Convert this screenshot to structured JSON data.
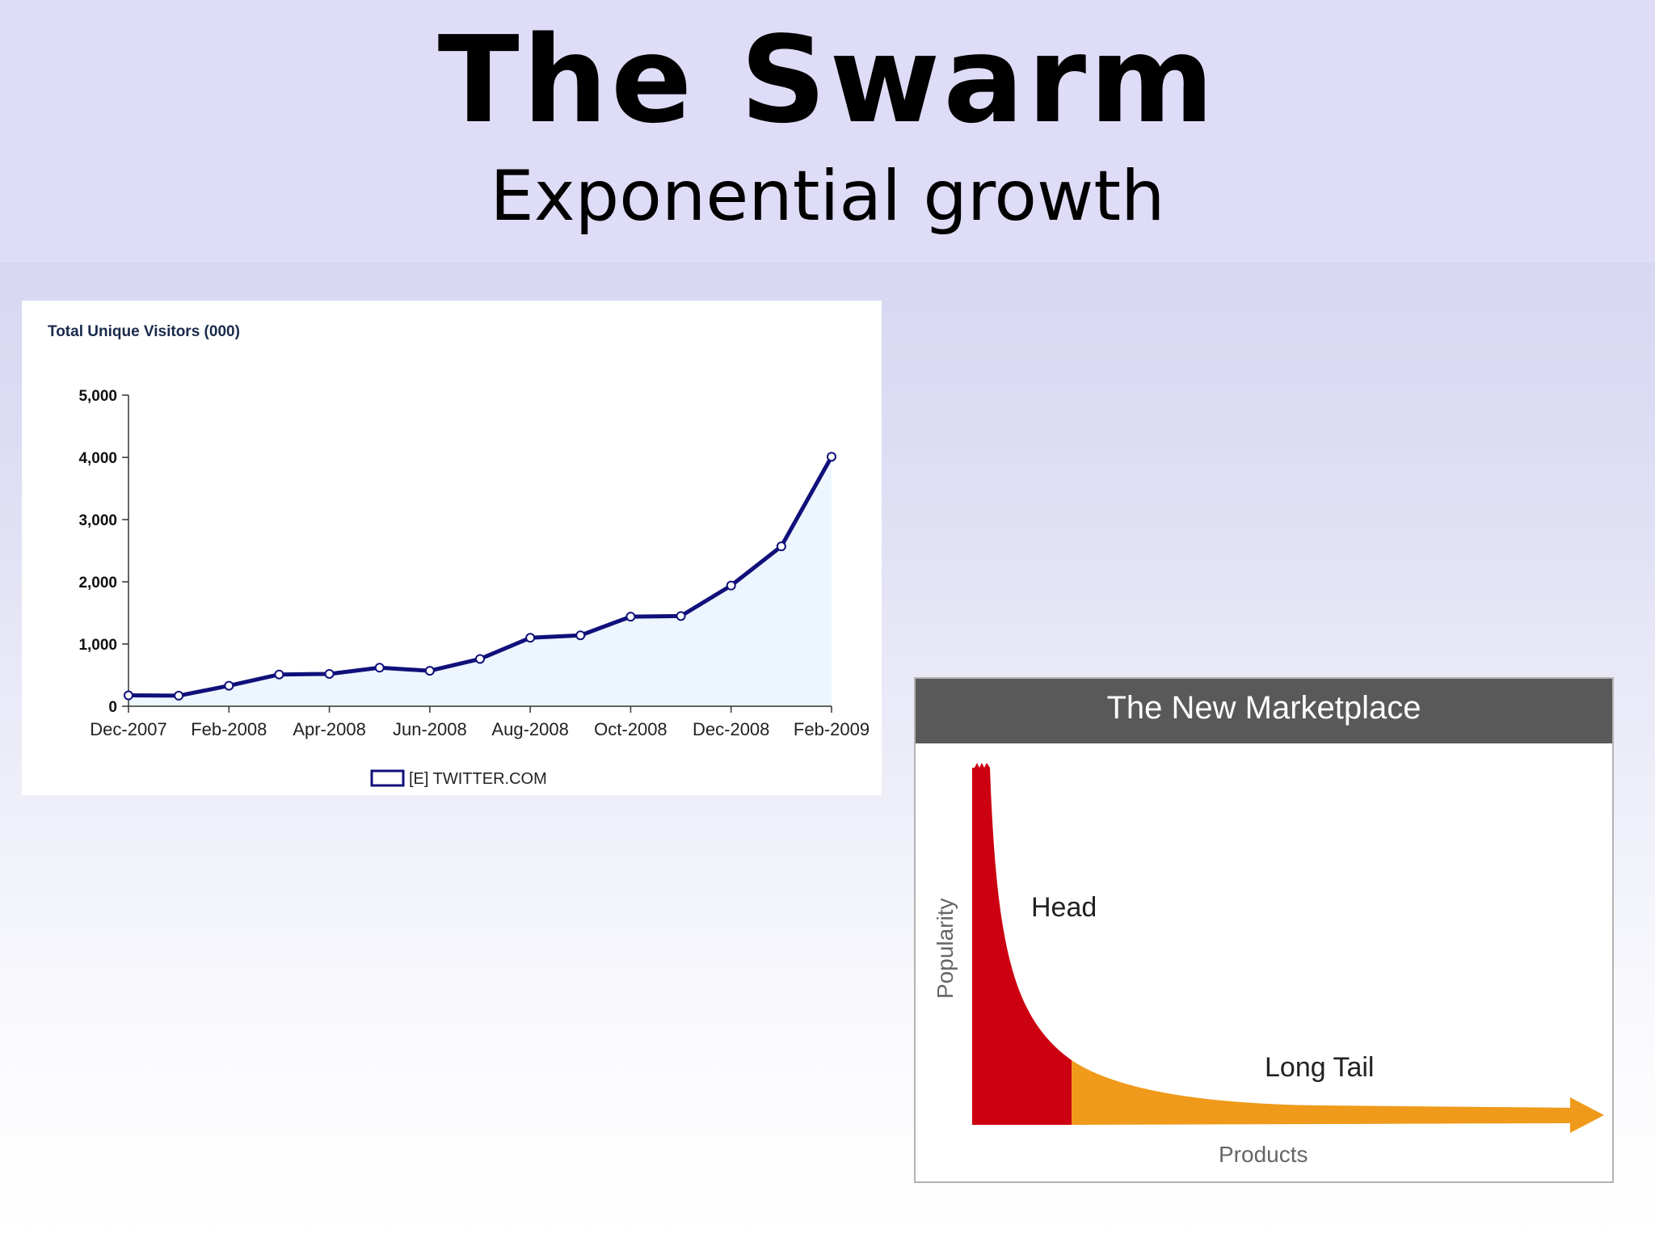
{
  "slide": {
    "title": "The Swarm",
    "subtitle": "Exponential growth"
  },
  "chart_data": [
    {
      "type": "line",
      "title": "Total Unique Visitors (000)",
      "xlabel": "",
      "ylabel": "",
      "ylim": [
        0,
        5000
      ],
      "yticks": [
        "0",
        "1,000",
        "2,000",
        "3,000",
        "4,000",
        "5,000"
      ],
      "ytick_values": [
        0,
        1000,
        2000,
        3000,
        4000,
        5000
      ],
      "x_tick_labels": [
        "Dec-2007",
        "Feb-2008",
        "Apr-2008",
        "Jun-2008",
        "Aug-2008",
        "Oct-2008",
        "Dec-2008",
        "Feb-2009"
      ],
      "categories": [
        "Dec-2007",
        "Jan-2008",
        "Feb-2008",
        "Mar-2008",
        "Apr-2008",
        "May-2008",
        "Jun-2008",
        "Jul-2008",
        "Aug-2008",
        "Sep-2008",
        "Oct-2008",
        "Nov-2008",
        "Dec-2008",
        "Jan-2009",
        "Feb-2009"
      ],
      "series": [
        {
          "name": "[E] TWITTER.COM",
          "values": [
            175,
            170,
            330,
            510,
            520,
            620,
            570,
            760,
            1100,
            1140,
            1440,
            1450,
            1940,
            2570,
            4010
          ]
        }
      ],
      "legend": "bottom-center",
      "colors": {
        "line": "#10107a",
        "fill": "#edf5ff",
        "axis": "#333333"
      }
    },
    {
      "type": "area",
      "title": "The New Marketplace",
      "xlabel": "Products",
      "ylabel": "Popularity",
      "annotations": [
        "Head",
        "Long Tail"
      ],
      "colors": {
        "head": "#cc0011",
        "tail": "#ef9a1a",
        "header": "#595959"
      }
    }
  ]
}
